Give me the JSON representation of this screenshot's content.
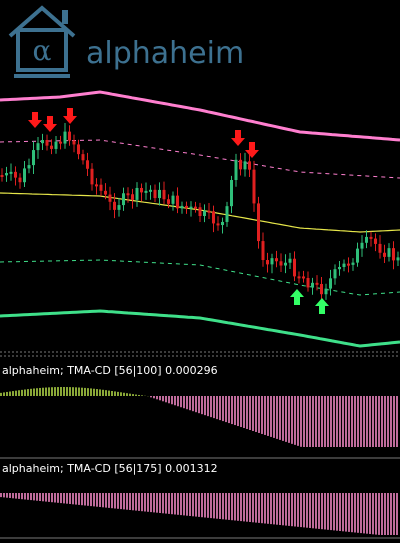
{
  "logo": {
    "text": "alphaheim"
  },
  "panels": [
    {
      "label": "alphaheim; TMA-CD [56|100] 0.000296"
    },
    {
      "label": "alphaheim; TMA-CD [56|175] 0.001312"
    }
  ]
}
